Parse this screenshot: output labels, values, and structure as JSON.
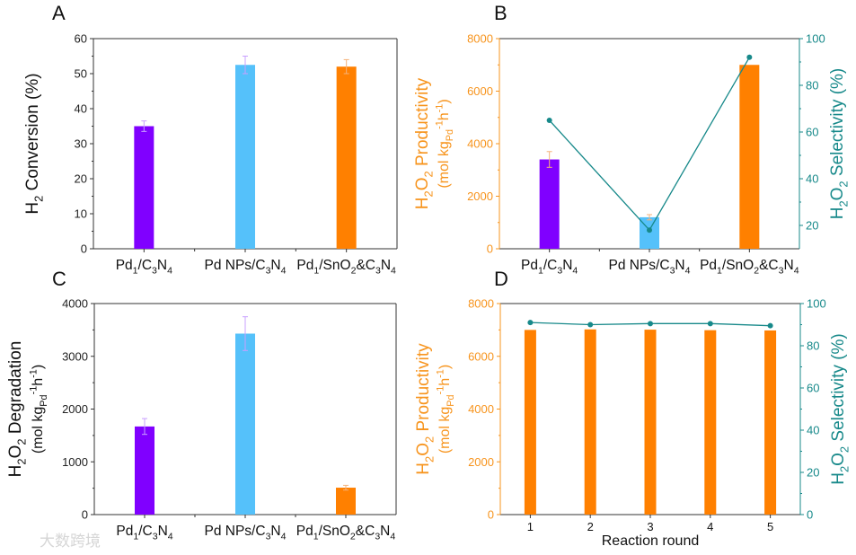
{
  "colors": {
    "purple": "#8000FF",
    "blue": "#55C1FA",
    "orange": "#FF8000",
    "orange_axis": "#F7941D",
    "teal": "#17898A",
    "axis": "#333333",
    "error_purple": "#C9A0FF",
    "error_orange": "#F5B27A"
  },
  "watermark": "大数跨境",
  "chart_data": [
    {
      "panel": "A",
      "type": "bar",
      "categories": [
        [
          {
            "t": "Pd"
          },
          {
            "t": "1",
            "sub": true
          },
          {
            "t": "/C"
          },
          {
            "t": "3",
            "sub": true
          },
          {
            "t": "N"
          },
          {
            "t": "4",
            "sub": true
          }
        ],
        [
          {
            "t": "Pd NPs/C"
          },
          {
            "t": "3",
            "sub": true
          },
          {
            "t": "N"
          },
          {
            "t": "4",
            "sub": true
          }
        ],
        [
          {
            "t": "Pd"
          },
          {
            "t": "1",
            "sub": true
          },
          {
            "t": "/SnO"
          },
          {
            "t": "2",
            "sub": true
          },
          {
            "t": "&C"
          },
          {
            "t": "3",
            "sub": true
          },
          {
            "t": "N"
          },
          {
            "t": "4",
            "sub": true
          }
        ]
      ],
      "values": [
        35,
        52.5,
        52
      ],
      "errors": [
        1.5,
        2.5,
        2
      ],
      "bar_colors": [
        "purple",
        "blue",
        "orange"
      ],
      "ylabel": [
        [
          {
            "t": "H"
          },
          {
            "t": "2",
            "sub": true
          },
          {
            "t": " Conversion (%)"
          }
        ]
      ],
      "ylim": [
        0,
        60
      ],
      "yticks": [
        0,
        10,
        20,
        30,
        40,
        50,
        60
      ]
    },
    {
      "panel": "B",
      "type": "bar+line",
      "categories": [
        [
          {
            "t": "Pd"
          },
          {
            "t": "1",
            "sub": true
          },
          {
            "t": "/C"
          },
          {
            "t": "3",
            "sub": true
          },
          {
            "t": "N"
          },
          {
            "t": "4",
            "sub": true
          }
        ],
        [
          {
            "t": "Pd NPs/C"
          },
          {
            "t": "3",
            "sub": true
          },
          {
            "t": "N"
          },
          {
            "t": "4",
            "sub": true
          }
        ],
        [
          {
            "t": "Pd"
          },
          {
            "t": "1",
            "sub": true
          },
          {
            "t": "/SnO"
          },
          {
            "t": "2",
            "sub": true
          },
          {
            "t": "&C"
          },
          {
            "t": "3",
            "sub": true
          },
          {
            "t": "N"
          },
          {
            "t": "4",
            "sub": true
          }
        ]
      ],
      "values": [
        3400,
        1200,
        7000
      ],
      "errors": [
        300,
        100,
        0
      ],
      "bar_colors": [
        "purple",
        "blue",
        "orange"
      ],
      "line": {
        "name": "H2O2 Selectivity",
        "values": [
          65,
          18,
          92
        ]
      },
      "ylabel": [
        [
          {
            "t": "H"
          },
          {
            "t": "2",
            "sub": true
          },
          {
            "t": "O"
          },
          {
            "t": "2",
            "sub": true
          },
          {
            "t": " Productivity"
          }
        ],
        [
          {
            "t": "(mol kg"
          },
          {
            "t": "Pd",
            "sub": true
          },
          {
            "t": "-1",
            "sup": true
          },
          {
            "t": "h"
          },
          {
            "t": "-1",
            "sup": true
          },
          {
            "t": ")"
          }
        ]
      ],
      "ylim": [
        0,
        8000
      ],
      "yticks": [
        0,
        2000,
        4000,
        6000,
        8000
      ],
      "y2label": [
        {
          "t": "H"
        },
        {
          "t": "2",
          "sub": true
        },
        {
          "t": "O"
        },
        {
          "t": "2",
          "sub": true
        },
        {
          "t": " Selectivity (%)"
        }
      ],
      "y2lim": [
        10,
        100
      ],
      "y2ticks": [
        20,
        40,
        60,
        80,
        100
      ]
    },
    {
      "panel": "C",
      "type": "bar",
      "categories": [
        [
          {
            "t": "Pd"
          },
          {
            "t": "1",
            "sub": true
          },
          {
            "t": "/C"
          },
          {
            "t": "3",
            "sub": true
          },
          {
            "t": "N"
          },
          {
            "t": "4",
            "sub": true
          }
        ],
        [
          {
            "t": "Pd NPs/C"
          },
          {
            "t": "3",
            "sub": true
          },
          {
            "t": "N"
          },
          {
            "t": "4",
            "sub": true
          }
        ],
        [
          {
            "t": "Pd"
          },
          {
            "t": "1",
            "sub": true
          },
          {
            "t": "/SnO"
          },
          {
            "t": "2",
            "sub": true
          },
          {
            "t": "&C"
          },
          {
            "t": "3",
            "sub": true
          },
          {
            "t": "N"
          },
          {
            "t": "4",
            "sub": true
          }
        ]
      ],
      "values": [
        1670,
        3430,
        510
      ],
      "errors": [
        150,
        320,
        45
      ],
      "bar_colors": [
        "purple",
        "blue",
        "orange"
      ],
      "ylabel": [
        [
          {
            "t": "H"
          },
          {
            "t": "2",
            "sub": true
          },
          {
            "t": "O"
          },
          {
            "t": "2",
            "sub": true
          },
          {
            "t": " Degradation"
          }
        ],
        [
          {
            "t": "(mol kg"
          },
          {
            "t": "Pd",
            "sub": true
          },
          {
            "t": "-1",
            "sup": true
          },
          {
            "t": "h"
          },
          {
            "t": "-1",
            "sup": true
          },
          {
            "t": ")"
          }
        ]
      ],
      "ylim": [
        0,
        4000
      ],
      "yticks": [
        0,
        1000,
        2000,
        3000,
        4000
      ]
    },
    {
      "panel": "D",
      "type": "bar+line",
      "categories": [
        [
          {
            "t": "1"
          }
        ],
        [
          {
            "t": "2"
          }
        ],
        [
          {
            "t": "3"
          }
        ],
        [
          {
            "t": "4"
          }
        ],
        [
          {
            "t": "5"
          }
        ]
      ],
      "values": [
        7000,
        7020,
        7010,
        6990,
        6980
      ],
      "errors": [
        0,
        0,
        0,
        0,
        0
      ],
      "bar_colors": [
        "orange",
        "orange",
        "orange",
        "orange",
        "orange"
      ],
      "line": {
        "name": "H2O2 Selectivity",
        "values": [
          91,
          90,
          90.5,
          90.5,
          89.5
        ]
      },
      "xlabel": "Reaction round",
      "ylabel": [
        [
          {
            "t": "H"
          },
          {
            "t": "2",
            "sub": true
          },
          {
            "t": "O"
          },
          {
            "t": "2",
            "sub": true
          },
          {
            "t": " Productivity"
          }
        ],
        [
          {
            "t": "(mol kg"
          },
          {
            "t": "Pd",
            "sub": true
          },
          {
            "t": "-1",
            "sup": true
          },
          {
            "t": "h"
          },
          {
            "t": "-1",
            "sup": true
          },
          {
            "t": ")"
          }
        ]
      ],
      "ylim": [
        0,
        8000
      ],
      "yticks": [
        0,
        2000,
        4000,
        6000,
        8000
      ],
      "y2label": [
        {
          "t": "H"
        },
        {
          "t": "2",
          "sub": true
        },
        {
          "t": "O"
        },
        {
          "t": "2",
          "sub": true
        },
        {
          "t": " Selectivity (%)"
        }
      ],
      "y2lim": [
        0,
        100
      ],
      "y2ticks": [
        0,
        20,
        40,
        60,
        80,
        100
      ]
    }
  ]
}
